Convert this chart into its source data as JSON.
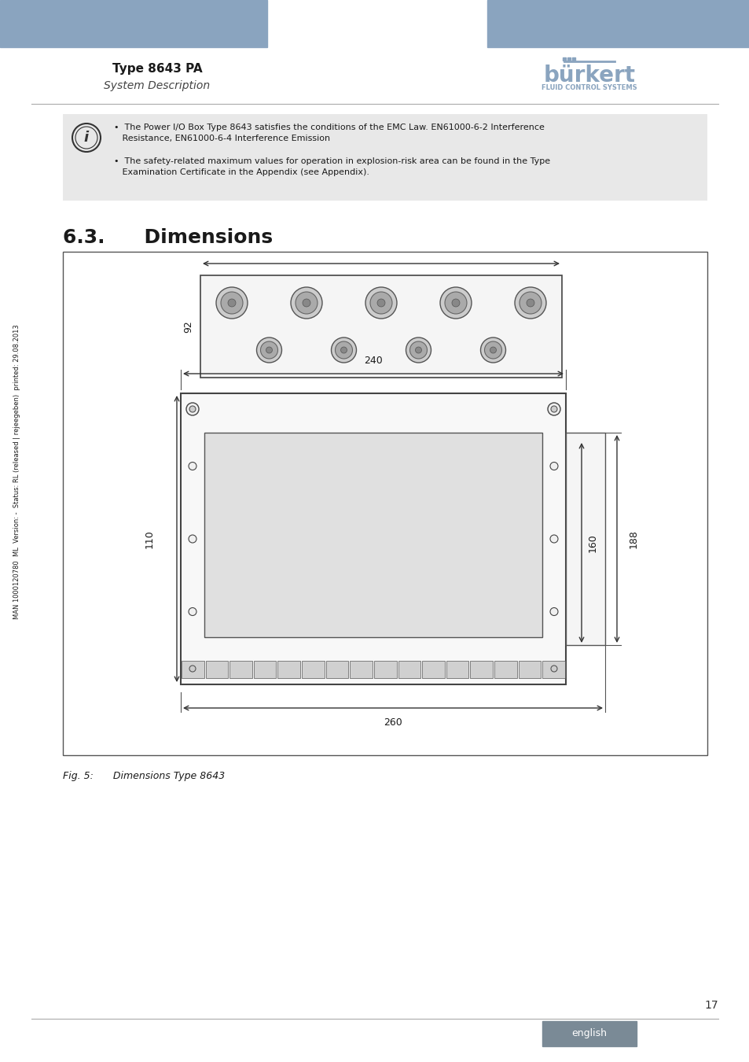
{
  "page_bg": "#ffffff",
  "header_bar_color": "#8aa4bf",
  "header_text_left_bold": "Type 8643 PA",
  "header_text_left_sub": "System Description",
  "footer_bar_color": "#7a8a96",
  "footer_text": "english",
  "page_number": "17",
  "section_title": "6.3.  Dimensions",
  "info_box_bg": "#e8e8e8",
  "info_line1": "•  The Power I/O Box Type 8643 satisfies the conditions of the EMC Law. EN61000-6-2 Interference",
  "info_line2": "   Resistance, EN61000-6-4 Interference Emission",
  "info_line3": "•  The safety-related maximum values for operation in explosion-risk area can be found in the Type",
  "info_line4": "   Examination Certificate in the Appendix (see Appendix).",
  "fig_caption": "Fig. 5:  Dimensions Type 8643",
  "sidebar_text": "MAN 1000120780  ML  Version: -  Status: RL (released | rejeegeben)  printed: 29.08.2013",
  "dim_240": "240",
  "dim_260": "260",
  "dim_92": "92",
  "dim_110": "110",
  "dim_160": "160",
  "dim_188": "188"
}
